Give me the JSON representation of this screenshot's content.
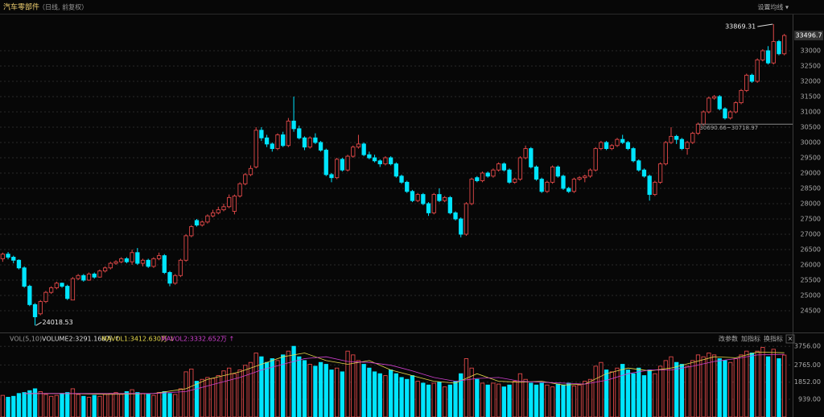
{
  "chart_data": [
    {
      "type": "candlestick",
      "title": "汽车零部件",
      "subtitle": "（日线, 前复权）",
      "setting": "设置均线 ▾",
      "up_color": "#e04848",
      "down_color": "#00e5ff",
      "ylim": [
        23868,
        34184
      ],
      "yticks": [
        24500,
        25000,
        25500,
        26000,
        26500,
        27000,
        27500,
        28000,
        28500,
        29000,
        29500,
        30000,
        30500,
        31000,
        31500,
        32000,
        32500,
        33000
      ],
      "annotation": "30690.66~30718.97",
      "ohlc": [
        [
          26200,
          26400,
          26100,
          26350
        ],
        [
          26350,
          26420,
          26180,
          26250
        ],
        [
          26250,
          26300,
          26050,
          26150
        ],
        [
          26150,
          26180,
          25850,
          25900
        ],
        [
          25900,
          25950,
          25250,
          25300
        ],
        [
          25300,
          25350,
          24650,
          24700
        ],
        [
          24700,
          24750,
          24018.53,
          24300
        ],
        [
          24400,
          24850,
          24350,
          24800
        ],
        [
          24800,
          25150,
          24750,
          25100
        ],
        [
          25100,
          25300,
          25050,
          25250
        ],
        [
          25250,
          25450,
          25200,
          25400
        ],
        [
          25400,
          25420,
          25250,
          25300
        ],
        [
          25300,
          25350,
          24850,
          24900
        ],
        [
          24850,
          25600,
          24850,
          25550
        ],
        [
          25550,
          25700,
          25500,
          25650
        ],
        [
          25650,
          25700,
          25450,
          25500
        ],
        [
          25500,
          25750,
          25480,
          25700
        ],
        [
          25700,
          25750,
          25550,
          25600
        ],
        [
          25600,
          25850,
          25580,
          25800
        ],
        [
          25800,
          25950,
          25750,
          25900
        ],
        [
          25900,
          26100,
          25850,
          26050
        ],
        [
          26050,
          26150,
          26000,
          26100
        ],
        [
          26100,
          26250,
          26050,
          26200
        ],
        [
          26200,
          26250,
          26050,
          26100
        ],
        [
          26100,
          26500,
          26000,
          26400
        ],
        [
          26400,
          26550,
          26000,
          26050
        ],
        [
          26050,
          26200,
          25950,
          26150
        ],
        [
          26150,
          26200,
          25900,
          25950
        ],
        [
          25950,
          26250,
          25900,
          26200
        ],
        [
          26200,
          26400,
          26150,
          26300
        ],
        [
          26300,
          26350,
          25700,
          25750
        ],
        [
          25750,
          25800,
          25300,
          25400
        ],
        [
          25400,
          25700,
          25350,
          25650
        ],
        [
          25650,
          26200,
          25600,
          26150
        ],
        [
          26150,
          27000,
          26100,
          26950
        ],
        [
          26950,
          27300,
          26900,
          27250
        ],
        [
          27450,
          27500,
          27250,
          27300
        ],
        [
          27300,
          27450,
          27250,
          27400
        ],
        [
          27400,
          27650,
          27350,
          27600
        ],
        [
          27600,
          27800,
          27550,
          27700
        ],
        [
          27700,
          27900,
          27650,
          27800
        ],
        [
          27800,
          28000,
          27750,
          27900
        ],
        [
          27900,
          28300,
          27850,
          28200
        ],
        [
          27750,
          28300,
          27650,
          28250
        ],
        [
          28250,
          28700,
          28200,
          28650
        ],
        [
          28650,
          29000,
          28600,
          28950
        ],
        [
          28950,
          29250,
          28900,
          29150
        ],
        [
          29200,
          30500,
          29150,
          30400
        ],
        [
          30400,
          30500,
          30050,
          30150
        ],
        [
          30150,
          30250,
          29850,
          29950
        ],
        [
          29950,
          30000,
          29700,
          29800
        ],
        [
          29800,
          30300,
          29750,
          30250
        ],
        [
          30250,
          30350,
          29850,
          29900
        ],
        [
          29900,
          30800,
          29850,
          30700
        ],
        [
          30700,
          31500,
          30350,
          30450
        ],
        [
          30450,
          30550,
          30100,
          30150
        ],
        [
          30150,
          30200,
          29750,
          29850
        ],
        [
          29850,
          30200,
          29800,
          30150
        ],
        [
          30150,
          30300,
          29950,
          30000
        ],
        [
          30000,
          30050,
          29700,
          29750
        ],
        [
          29750,
          29800,
          28900,
          28950
        ],
        [
          28950,
          29000,
          28700,
          28850
        ],
        [
          28850,
          29500,
          28800,
          29450
        ],
        [
          29450,
          29500,
          29050,
          29100
        ],
        [
          29100,
          29600,
          29050,
          29550
        ],
        [
          29550,
          29900,
          29500,
          29850
        ],
        [
          29850,
          30250,
          29800,
          29950
        ],
        [
          29950,
          30000,
          29550,
          29600
        ],
        [
          29600,
          29700,
          29450,
          29500
        ],
        [
          29500,
          29600,
          29350,
          29400
        ],
        [
          29400,
          29450,
          29200,
          29300
        ],
        [
          29300,
          29550,
          29250,
          29500
        ],
        [
          29500,
          29550,
          29250,
          29300
        ],
        [
          29300,
          29350,
          28850,
          28900
        ],
        [
          28900,
          28950,
          28650,
          28700
        ],
        [
          28700,
          28750,
          28350,
          28400
        ],
        [
          28400,
          28450,
          28050,
          28100
        ],
        [
          28100,
          28350,
          28050,
          28300
        ],
        [
          28300,
          28350,
          27950,
          28000
        ],
        [
          28000,
          28050,
          27600,
          27700
        ],
        [
          27700,
          28350,
          27650,
          28300
        ],
        [
          28300,
          28500,
          28050,
          28100
        ],
        [
          28100,
          28250,
          28050,
          28200
        ],
        [
          28200,
          28250,
          27650,
          27700
        ],
        [
          27700,
          27750,
          27450,
          27500
        ],
        [
          27500,
          27550,
          26900,
          27000
        ],
        [
          27000,
          28050,
          26950,
          28000
        ],
        [
          28000,
          28850,
          27950,
          28800
        ],
        [
          28850,
          28900,
          28700,
          28750
        ],
        [
          28750,
          29050,
          28700,
          29000
        ],
        [
          29000,
          29050,
          28850,
          28900
        ],
        [
          28900,
          29150,
          28850,
          29100
        ],
        [
          29100,
          29350,
          29050,
          29300
        ],
        [
          29300,
          29350,
          29050,
          29100
        ],
        [
          29100,
          29150,
          28650,
          28700
        ],
        [
          28700,
          28850,
          28650,
          28800
        ],
        [
          28800,
          29550,
          28750,
          29500
        ],
        [
          29500,
          29900,
          29450,
          29800
        ],
        [
          29800,
          29850,
          29150,
          29200
        ],
        [
          29200,
          29250,
          28750,
          28800
        ],
        [
          28800,
          28850,
          28350,
          28400
        ],
        [
          28400,
          28750,
          28350,
          28700
        ],
        [
          28700,
          29250,
          28650,
          29200
        ],
        [
          29200,
          29250,
          28850,
          28900
        ],
        [
          28900,
          28950,
          28450,
          28500
        ],
        [
          28500,
          28550,
          28350,
          28400
        ],
        [
          28400,
          28850,
          28350,
          28800
        ],
        [
          28800,
          28900,
          28750,
          28850
        ],
        [
          28850,
          28950,
          28700,
          28900
        ],
        [
          28900,
          29150,
          28850,
          29100
        ],
        [
          29100,
          29850,
          29050,
          29800
        ],
        [
          29800,
          30050,
          29750,
          30000
        ],
        [
          30000,
          30050,
          29750,
          29800
        ],
        [
          29800,
          29950,
          29750,
          29900
        ],
        [
          29900,
          30150,
          29850,
          30100
        ],
        [
          30100,
          30250,
          29950,
          30000
        ],
        [
          30000,
          30050,
          29750,
          29800
        ],
        [
          29800,
          29850,
          29350,
          29400
        ],
        [
          29400,
          29450,
          29050,
          29100
        ],
        [
          29100,
          29150,
          28850,
          28900
        ],
        [
          28900,
          28950,
          28100,
          28300
        ],
        [
          28300,
          28750,
          28250,
          28700
        ],
        [
          28700,
          29350,
          28650,
          29300
        ],
        [
          29300,
          30050,
          29250,
          30000
        ],
        [
          30000,
          30500,
          29950,
          30200
        ],
        [
          30200,
          30250,
          29950,
          30100
        ],
        [
          30100,
          30150,
          29750,
          29800
        ],
        [
          29800,
          30050,
          29600,
          30000
        ],
        [
          30000,
          30350,
          29950,
          30300
        ],
        [
          30300,
          30650,
          30250,
          30600
        ],
        [
          30600,
          31050,
          30550,
          31000
        ],
        [
          31000,
          31500,
          30950,
          31450
        ],
        [
          31450,
          31550,
          31400,
          31500
        ],
        [
          31500,
          31550,
          31050,
          31100
        ],
        [
          31100,
          31150,
          30750,
          30800
        ],
        [
          30800,
          31050,
          30750,
          31000
        ],
        [
          31000,
          31350,
          30950,
          31300
        ],
        [
          31300,
          31750,
          31250,
          31700
        ],
        [
          31700,
          32250,
          31650,
          32200
        ],
        [
          32200,
          32250,
          31950,
          32000
        ],
        [
          32000,
          32750,
          31950,
          32700
        ],
        [
          32700,
          33050,
          32650,
          33000
        ],
        [
          33000,
          33150,
          32550,
          32600
        ],
        [
          32600,
          33869.31,
          32550,
          33300
        ],
        [
          33300,
          33350,
          32850,
          32900
        ],
        [
          32900,
          33550,
          32850,
          33496.7
        ]
      ]
    },
    {
      "type": "bar",
      "title": "VOL(5,10)",
      "label": "VOLUME2:3291.166万 ↑",
      "buttons": [
        "改参数",
        "加指标",
        "换指标"
      ],
      "close": "✕",
      "ylim": [
        0,
        3850
      ],
      "yticks": [
        {
          "value": 939,
          "label": "939.00"
        },
        {
          "value": 1852,
          "label": "1852.00"
        },
        {
          "value": 2765,
          "label": "2765.00"
        },
        {
          "value": 3756,
          "label": "3756.00"
        }
      ],
      "values": [
        1150,
        1050,
        1100,
        1250,
        1300,
        1400,
        1500,
        1350,
        1200,
        1100,
        1150,
        1250,
        1300,
        1500,
        1200,
        1100,
        1050,
        1150,
        1100,
        1200,
        1250,
        1300,
        1200,
        1350,
        1450,
        1300,
        1250,
        1200,
        1150,
        1300,
        1350,
        1250,
        1200,
        1500,
        2400,
        2550,
        1900,
        2000,
        2100,
        2050,
        2200,
        2450,
        2600,
        2300,
        2500,
        2750,
        2900,
        3400,
        3200,
        2900,
        3100,
        3000,
        3300,
        3500,
        3756,
        3200,
        3000,
        2800,
        2700,
        2900,
        2800,
        2500,
        2600,
        2400,
        3500,
        3300,
        3000,
        2800,
        2600,
        2400,
        2300,
        2200,
        2500,
        2300,
        2100,
        2000,
        2200,
        1900,
        1800,
        1700,
        1800,
        1850,
        1600,
        1700,
        1900,
        2300,
        3100,
        2600,
        2000,
        1800,
        1700,
        1800,
        1750,
        1600,
        1700,
        1900,
        2300,
        2000,
        1800,
        1700,
        1800,
        1700,
        1600,
        1750,
        1700,
        1800,
        1650,
        1700,
        1900,
        2000,
        2700,
        2900,
        2500,
        2400,
        2600,
        2800,
        2500,
        2300,
        2600,
        2200,
        2500,
        2300,
        2700,
        3000,
        3200,
        2900,
        2800,
        2700,
        3000,
        3300,
        3200,
        3400,
        3300,
        3100,
        3000,
        2900,
        3100,
        3300,
        3500,
        3400,
        3500,
        3700,
        3200,
        3600,
        3100,
        3291.166
      ],
      "series": [
        {
          "name": "MAVOL1:3412.630万 ↓",
          "color": "#e6d84a",
          "x": [
            4,
            12,
            20,
            28,
            34,
            38,
            44,
            48,
            52,
            56,
            60,
            64,
            68,
            72,
            76,
            80,
            84,
            88,
            92,
            96,
            100,
            104,
            108,
            112,
            116,
            120,
            124,
            128,
            132,
            136,
            140,
            145
          ],
          "values": [
            1250,
            1250,
            1200,
            1250,
            1500,
            2000,
            2400,
            2800,
            3200,
            3400,
            3000,
            2800,
            3000,
            2500,
            2200,
            1900,
            1800,
            2300,
            1900,
            1850,
            1900,
            1700,
            1750,
            2300,
            2600,
            2450,
            2600,
            2900,
            3200,
            3150,
            3450,
            3412.63
          ]
        },
        {
          "name": "MAVOL2:3332.652万 ↑",
          "color": "#d040d0",
          "x": [
            4,
            12,
            20,
            28,
            34,
            38,
            44,
            48,
            52,
            56,
            60,
            64,
            68,
            72,
            76,
            80,
            84,
            88,
            92,
            96,
            100,
            104,
            108,
            112,
            116,
            120,
            124,
            128,
            132,
            136,
            140,
            145
          ],
          "values": [
            1250,
            1250,
            1250,
            1250,
            1350,
            1650,
            2100,
            2500,
            2800,
            3100,
            3200,
            2950,
            2900,
            2750,
            2450,
            2100,
            1900,
            2050,
            2100,
            1900,
            1850,
            1800,
            1750,
            1950,
            2300,
            2500,
            2500,
            2700,
            2950,
            3100,
            3300,
            3332.652
          ]
        }
      ]
    }
  ]
}
